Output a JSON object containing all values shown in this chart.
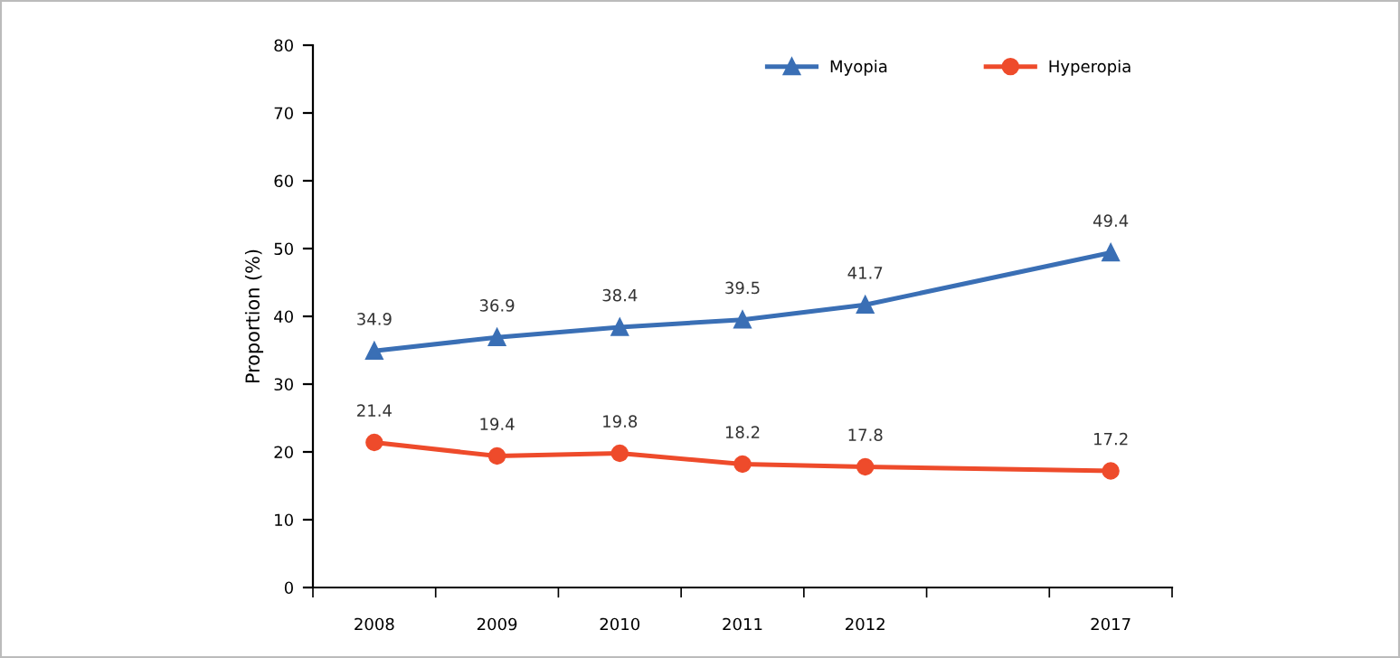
{
  "chart_data": {
    "type": "line",
    "ylabel": "Proportion (%)",
    "categories": [
      "2008",
      "2009",
      "2010",
      "2011",
      "2012",
      null,
      "2017"
    ],
    "series": [
      {
        "name": "Myopia",
        "color": "#3a6fb5",
        "marker": "triangle",
        "values": [
          34.9,
          36.9,
          38.4,
          39.5,
          41.7,
          null,
          49.4
        ]
      },
      {
        "name": "Hyperopia",
        "color": "#ee4b2b",
        "marker": "circle",
        "values": [
          21.4,
          19.4,
          19.8,
          18.2,
          17.8,
          null,
          17.2
        ]
      }
    ],
    "ylim": [
      0,
      80
    ],
    "yticks": [
      0,
      10,
      20,
      30,
      40,
      50,
      60,
      70,
      80
    ],
    "grid": false,
    "legend": "top right",
    "data_labels": true,
    "line_style": "solid"
  }
}
